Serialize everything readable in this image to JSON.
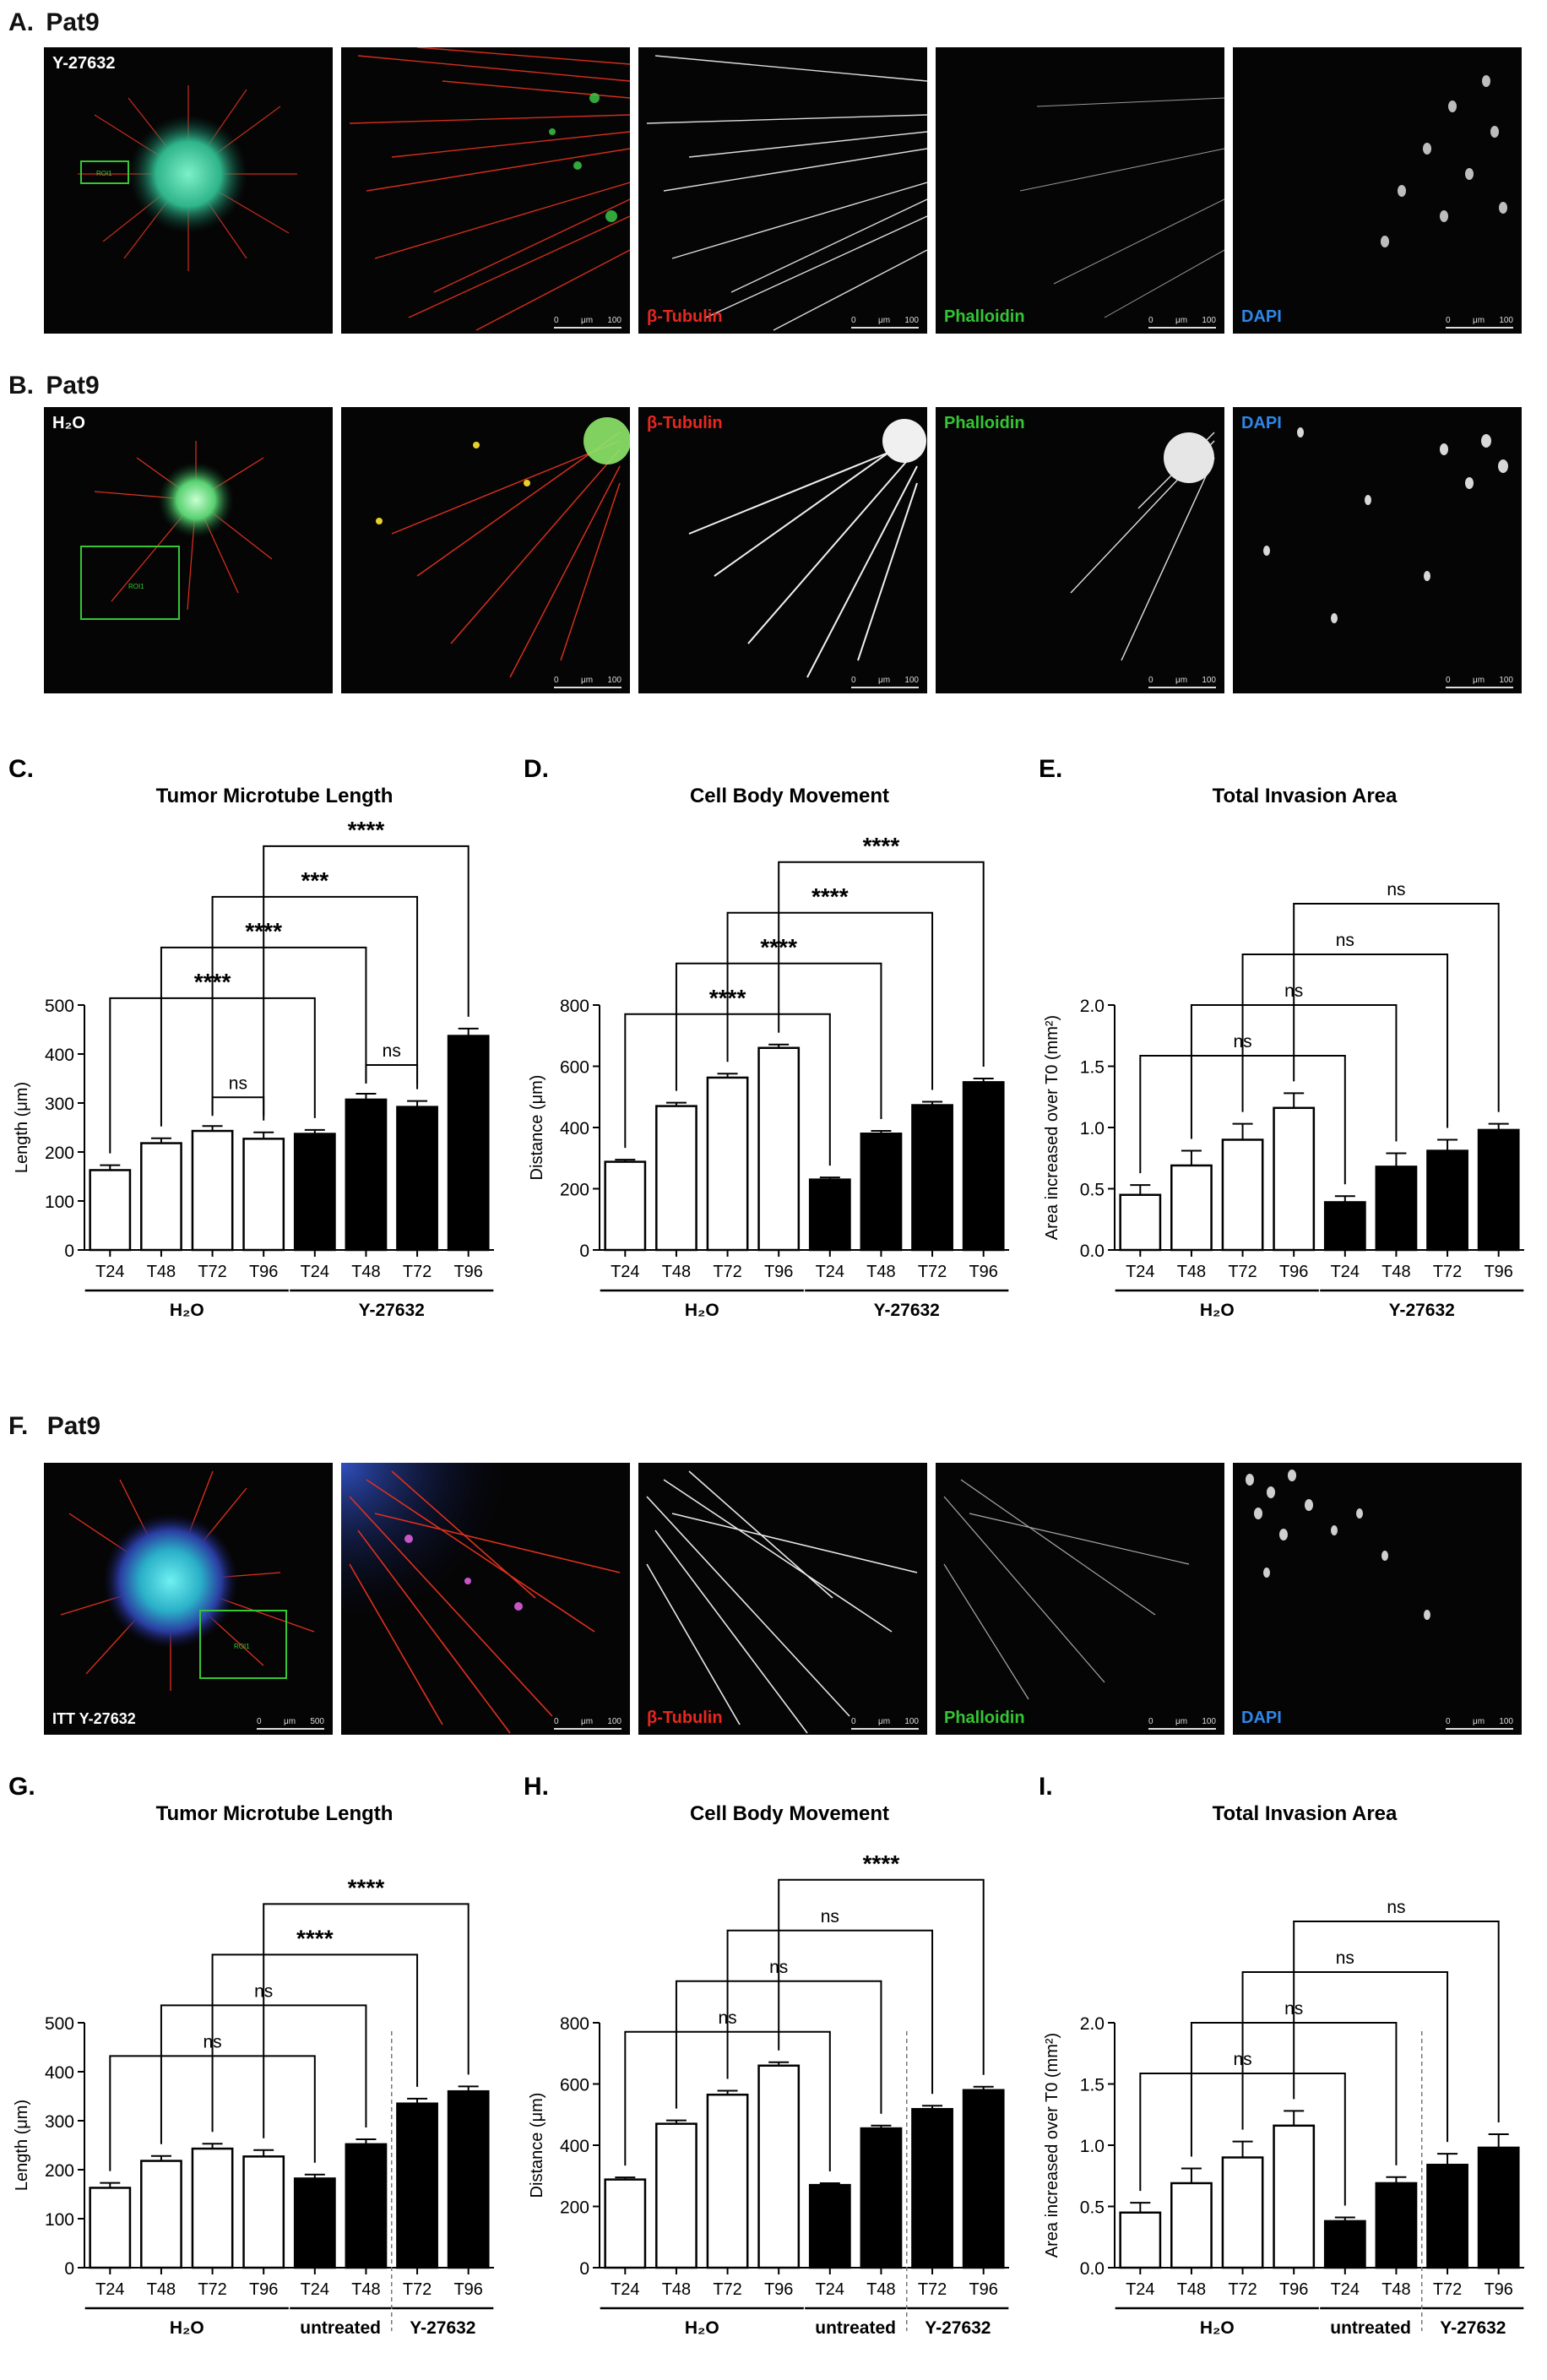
{
  "panels": {
    "A": {
      "letter": "A.",
      "title": "Pat9",
      "overview_label": "Y-27632",
      "roi": "ROI1",
      "channels": [
        "β-Tubulin",
        "Phalloidin",
        "DAPI"
      ],
      "scale": {
        "zero": "0",
        "unit": "μm",
        "value": "100"
      }
    },
    "B": {
      "letter": "B.",
      "title": "Pat9",
      "overview_label": "H₂O",
      "roi": "ROI1",
      "channels": [
        "β-Tubulin",
        "Phalloidin",
        "DAPI"
      ],
      "scale": {
        "zero": "0",
        "unit": "μm",
        "value": "100"
      }
    },
    "F": {
      "letter": "F.",
      "title": "Pat9",
      "overview_label": "ITT Y-27632",
      "roi": "ROI1",
      "channels": [
        "β-Tubulin",
        "Phalloidin",
        "DAPI"
      ],
      "scale": {
        "zero": "0",
        "unit": "μm",
        "value": "100"
      },
      "overview_scale": {
        "zero": "0",
        "unit": "μm",
        "value": "500"
      }
    }
  },
  "colors": {
    "tubulin": "#e8271f",
    "phalloidin": "#34c534",
    "dapi": "#2e86e8",
    "roi": "#36c636"
  },
  "chart_data": [
    {
      "panel": "C.",
      "type": "bar",
      "title": "Tumor Microtube Length",
      "ylabel": "Length (μm)",
      "ylim": [
        0,
        500
      ],
      "yticks": [
        0,
        100,
        200,
        300,
        400,
        500
      ],
      "categories": [
        "T24",
        "T48",
        "T72",
        "T96",
        "T24",
        "T48",
        "T72",
        "T96"
      ],
      "values": [
        163,
        218,
        243,
        227,
        237,
        307,
        292,
        437
      ],
      "errors": [
        10,
        10,
        10,
        13,
        8,
        12,
        12,
        15
      ],
      "fills": [
        "white",
        "white",
        "white",
        "white",
        "black",
        "black",
        "black",
        "black"
      ],
      "groups": [
        {
          "label": "H₂O",
          "from": 0,
          "to": 3
        },
        {
          "label": "Y-27632",
          "from": 4,
          "to": 7
        }
      ],
      "dividers": [],
      "brackets": [
        {
          "from": 0,
          "to": 4,
          "label": "****"
        },
        {
          "from": 1,
          "to": 5,
          "label": "****"
        },
        {
          "from": 2,
          "to": 6,
          "label": "***"
        },
        {
          "from": 3,
          "to": 7,
          "label": "****"
        },
        {
          "from": 2,
          "to": 3,
          "label": "ns"
        },
        {
          "from": 5,
          "to": 6,
          "label": "ns"
        }
      ]
    },
    {
      "panel": "D.",
      "type": "bar",
      "title": "Cell Body Movement",
      "ylabel": "Distance (μm)",
      "ylim": [
        0,
        800
      ],
      "yticks": [
        0,
        200,
        400,
        600,
        800
      ],
      "categories": [
        "T24",
        "T48",
        "T72",
        "T96",
        "T24",
        "T48",
        "T72",
        "T96"
      ],
      "values": [
        288,
        470,
        563,
        660,
        230,
        380,
        473,
        548
      ],
      "errors": [
        7,
        11,
        13,
        11,
        7,
        9,
        11,
        12
      ],
      "fills": [
        "white",
        "white",
        "white",
        "white",
        "black",
        "black",
        "black",
        "black"
      ],
      "groups": [
        {
          "label": "H₂O",
          "from": 0,
          "to": 3
        },
        {
          "label": "Y-27632",
          "from": 4,
          "to": 7
        }
      ],
      "dividers": [],
      "brackets": [
        {
          "from": 0,
          "to": 4,
          "label": "****"
        },
        {
          "from": 1,
          "to": 5,
          "label": "****"
        },
        {
          "from": 2,
          "to": 6,
          "label": "****"
        },
        {
          "from": 3,
          "to": 7,
          "label": "****"
        }
      ]
    },
    {
      "panel": "E.",
      "type": "bar",
      "title": "Total Invasion Area",
      "ylabel": "Area increased over T0 (mm²)",
      "ylim": [
        0,
        2.0
      ],
      "yticks": [
        "0.0",
        "0.5",
        "1.0",
        "1.5",
        "2.0"
      ],
      "categories": [
        "T24",
        "T48",
        "T72",
        "T96",
        "T24",
        "T48",
        "T72",
        "T96"
      ],
      "values": [
        0.45,
        0.69,
        0.9,
        1.16,
        0.39,
        0.68,
        0.81,
        0.98
      ],
      "errors": [
        0.08,
        0.12,
        0.13,
        0.12,
        0.05,
        0.11,
        0.09,
        0.05
      ],
      "fills": [
        "white",
        "white",
        "white",
        "white",
        "black",
        "black",
        "black",
        "black"
      ],
      "groups": [
        {
          "label": "H₂O",
          "from": 0,
          "to": 3
        },
        {
          "label": "Y-27632",
          "from": 4,
          "to": 7
        }
      ],
      "dividers": [],
      "brackets": [
        {
          "from": 0,
          "to": 4,
          "label": "ns"
        },
        {
          "from": 1,
          "to": 5,
          "label": "ns"
        },
        {
          "from": 2,
          "to": 6,
          "label": "ns"
        },
        {
          "from": 3,
          "to": 7,
          "label": "ns"
        }
      ]
    },
    {
      "panel": "G.",
      "type": "bar",
      "title": "Tumor Microtube Length",
      "ylabel": "Length (μm)",
      "ylim": [
        0,
        500
      ],
      "yticks": [
        0,
        100,
        200,
        300,
        400,
        500
      ],
      "categories": [
        "T24",
        "T48",
        "T72",
        "T96",
        "T24",
        "T48",
        "T72",
        "T96"
      ],
      "values": [
        163,
        218,
        243,
        227,
        182,
        252,
        335,
        360
      ],
      "errors": [
        10,
        10,
        10,
        13,
        8,
        10,
        10,
        10
      ],
      "fills": [
        "white",
        "white",
        "white",
        "white",
        "black",
        "black",
        "black",
        "black"
      ],
      "groups": [
        {
          "label": "H₂O",
          "from": 0,
          "to": 3
        },
        {
          "label": "untreated",
          "from": 4,
          "to": 5
        },
        {
          "label": "Y-27632",
          "from": 6,
          "to": 7
        }
      ],
      "dividers": [
        5.5
      ],
      "brackets": [
        {
          "from": 0,
          "to": 4,
          "label": "ns"
        },
        {
          "from": 1,
          "to": 5,
          "label": "ns"
        },
        {
          "from": 2,
          "to": 6,
          "label": "****"
        },
        {
          "from": 3,
          "to": 7,
          "label": "****"
        }
      ]
    },
    {
      "panel": "H.",
      "type": "bar",
      "title": "Cell Body Movement",
      "ylabel": "Distance (μm)",
      "ylim": [
        0,
        800
      ],
      "yticks": [
        0,
        200,
        400,
        600,
        800
      ],
      "categories": [
        "T24",
        "T48",
        "T72",
        "T96",
        "T24",
        "T48",
        "T72",
        "T96"
      ],
      "values": [
        288,
        470,
        565,
        660,
        270,
        455,
        518,
        580
      ],
      "errors": [
        7,
        11,
        13,
        11,
        6,
        9,
        11,
        11
      ],
      "fills": [
        "white",
        "white",
        "white",
        "white",
        "black",
        "black",
        "black",
        "black"
      ],
      "groups": [
        {
          "label": "H₂O",
          "from": 0,
          "to": 3
        },
        {
          "label": "untreated",
          "from": 4,
          "to": 5
        },
        {
          "label": "Y-27632",
          "from": 6,
          "to": 7
        }
      ],
      "dividers": [
        5.5
      ],
      "brackets": [
        {
          "from": 0,
          "to": 4,
          "label": "ns"
        },
        {
          "from": 1,
          "to": 5,
          "label": "ns"
        },
        {
          "from": 2,
          "to": 6,
          "label": "ns"
        },
        {
          "from": 3,
          "to": 7,
          "label": "****"
        }
      ]
    },
    {
      "panel": "I.",
      "type": "bar",
      "title": "Total Invasion Area",
      "ylabel": "Area increased over T0 (mm²)",
      "ylim": [
        0,
        2.0
      ],
      "yticks": [
        "0.0",
        "0.5",
        "1.0",
        "1.5",
        "2.0"
      ],
      "categories": [
        "T24",
        "T48",
        "T72",
        "T96",
        "T24",
        "T48",
        "T72",
        "T96"
      ],
      "values": [
        0.45,
        0.69,
        0.9,
        1.16,
        0.38,
        0.69,
        0.84,
        0.98
      ],
      "errors": [
        0.08,
        0.12,
        0.13,
        0.12,
        0.03,
        0.05,
        0.09,
        0.11
      ],
      "fills": [
        "white",
        "white",
        "white",
        "white",
        "black",
        "black",
        "black",
        "black"
      ],
      "groups": [
        {
          "label": "H₂O",
          "from": 0,
          "to": 3
        },
        {
          "label": "untreated",
          "from": 4,
          "to": 5
        },
        {
          "label": "Y-27632",
          "from": 6,
          "to": 7
        }
      ],
      "dividers": [
        5.5
      ],
      "brackets": [
        {
          "from": 0,
          "to": 4,
          "label": "ns"
        },
        {
          "from": 1,
          "to": 5,
          "label": "ns"
        },
        {
          "from": 2,
          "to": 6,
          "label": "ns"
        },
        {
          "from": 3,
          "to": 7,
          "label": "ns"
        }
      ]
    }
  ]
}
